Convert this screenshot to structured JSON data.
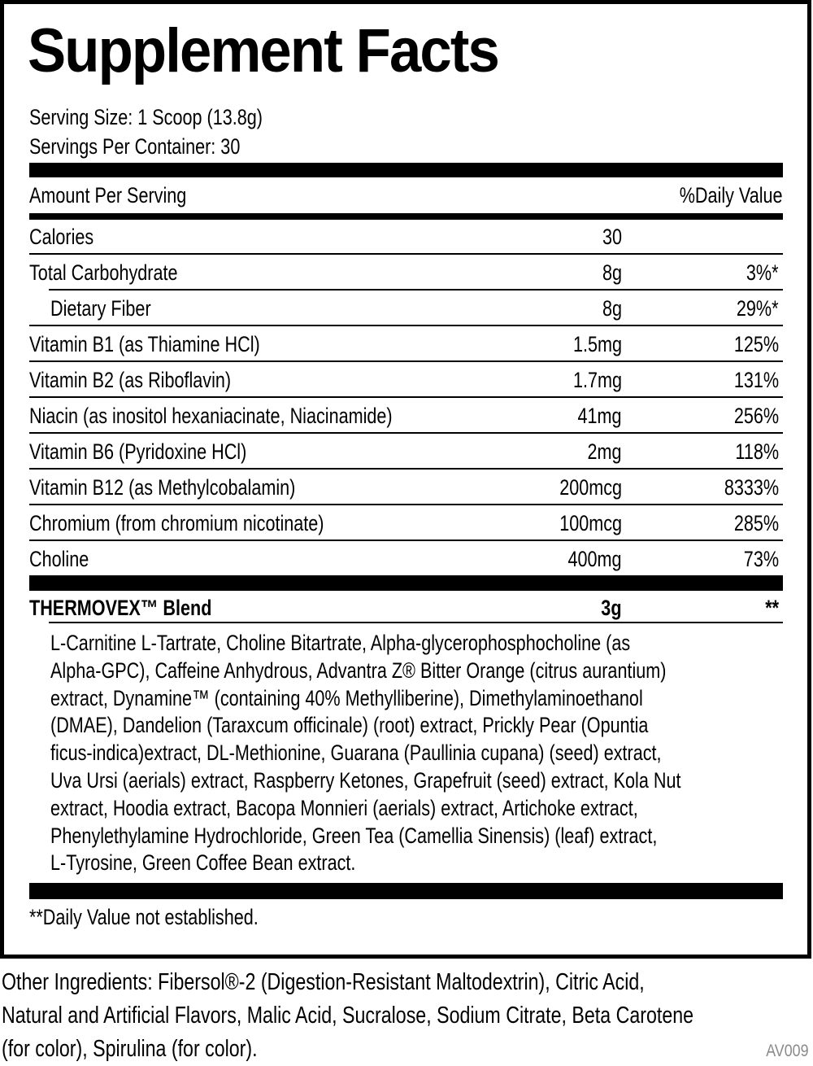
{
  "title": "Supplement Facts",
  "serving_size": "Serving Size: 1 Scoop (13.8g)",
  "servings_per_container": "Servings Per Container: 30",
  "header": {
    "amount": "Amount Per Serving",
    "dv": "%Daily Value"
  },
  "rows": [
    {
      "name": "Calories",
      "amount": "30",
      "dv": ""
    },
    {
      "name": "Total Carbohydrate",
      "amount": "8g",
      "dv": "3%*"
    },
    {
      "name": "Dietary Fiber",
      "amount": "8g",
      "dv": "29%*"
    },
    {
      "name": "Vitamin B1 (as Thiamine HCl)",
      "amount": "1.5mg",
      "dv": "125%"
    },
    {
      "name": "Vitamin B2 (as Riboflavin)",
      "amount": "1.7mg",
      "dv": "131%"
    },
    {
      "name": "Niacin (as inositol hexaniacinate, Niacinamide)",
      "amount": "41mg",
      "dv": "256%"
    },
    {
      "name": "Vitamin B6 (Pyridoxine HCl)",
      "amount": "2mg",
      "dv": "118%"
    },
    {
      "name": "Vitamin B12 (as Methylcobalamin)",
      "amount": "200mcg",
      "dv": "8333%"
    },
    {
      "name": "Chromium (from chromium nicotinate)",
      "amount": "100mcg",
      "dv": "285%"
    },
    {
      "name": "Choline",
      "amount": "400mg",
      "dv": "73%"
    }
  ],
  "blend": {
    "name": "THERMOVEX™ Blend",
    "amount": "3g",
    "dv": "**",
    "lines": [
      "L-Carnitine L-Tartrate, Choline Bitartrate, Alpha-glycerophosphocholine (as",
      "Alpha-GPC), Caffeine Anhydrous, Advantra Z® Bitter Orange (citrus aurantium)",
      "extract, Dynamine™ (containing 40% Methylliberine), Dimethylaminoethanol",
      "(DMAE), Dandelion (Taraxcum officinale) (root) extract, Prickly Pear (Opuntia",
      "ficus-indica)extract, DL-Methionine, Guarana (Paullinia cupana) (seed) extract,",
      "Uva Ursi (aerials) extract, Raspberry Ketones, Grapefruit (seed) extract, Kola Nut",
      "extract, Hoodia extract, Bacopa Monnieri (aerials) extract, Artichoke extract,",
      "Phenylethylamine Hydrochloride, Green Tea (Camellia Sinensis) (leaf) extract,",
      "L-Tyrosine, Green Coffee Bean extract."
    ]
  },
  "footnote": "**Daily Value not established.",
  "other_ingredients": [
    "Other Ingredients: Fibersol®-2 (Digestion-Resistant Maltodextrin), Citric Acid,",
    "Natural and Artificial Flavors, Malic Acid, Sucralose, Sodium Citrate, Beta Carotene",
    "(for color), Spirulina (for color)."
  ],
  "code": "AV009"
}
